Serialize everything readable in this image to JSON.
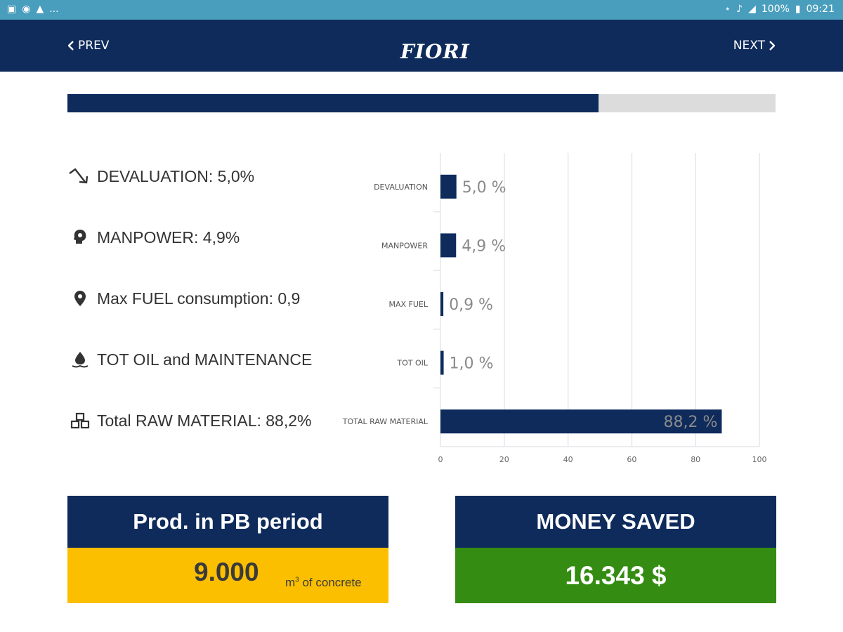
{
  "status_bar": {
    "left_icons": [
      "image-icon",
      "at-icon",
      "warning-icon",
      "more-notifications-icon"
    ],
    "more_text": "...",
    "right_icons": [
      "bluetooth-icon",
      "mute-icon",
      "signal-icon"
    ],
    "battery": "100%",
    "time": "09:21"
  },
  "nav": {
    "prev_label": "PREV",
    "next_label": "NEXT",
    "logo_text": "FIORI"
  },
  "progress": {
    "value": 0.75
  },
  "costs": [
    {
      "icon": "trending-down-icon",
      "text": "DEVALUATION: 5,0%"
    },
    {
      "icon": "head-gear-icon",
      "text": "MANPOWER: 4,9%"
    },
    {
      "icon": "location-pin-icon",
      "text": "Max FUEL consumption: 0,9"
    },
    {
      "icon": "oil-drop-icon",
      "text": "TOT OIL and MAINTENANCE"
    },
    {
      "icon": "stacked-boxes-icon",
      "text": "Total RAW MATERIAL: 88,2%"
    }
  ],
  "chart_data": {
    "type": "bar",
    "orientation": "horizontal",
    "categories": [
      "DEVALUATION",
      "MANPOWER",
      "MAX FUEL",
      "TOT OIL",
      "TOTAL RAW MATERIAL"
    ],
    "values": [
      5.0,
      4.9,
      0.9,
      1.0,
      88.2
    ],
    "value_labels": [
      "5,0 %",
      "4,9 %",
      "0,9 %",
      "1,0 %",
      "88,2 %"
    ],
    "xlim": [
      0,
      100
    ],
    "xticks": [
      "0",
      "20",
      "40",
      "60",
      "80",
      "100"
    ],
    "grid": true,
    "bar_color": "#0e2b5c"
  },
  "cards": {
    "prod": {
      "title": "Prod. in PB period",
      "value": "9.000",
      "unit_prefix": "m",
      "unit_sup": "3",
      "unit_suffix": " of concrete"
    },
    "money": {
      "title": "MONEY SAVED",
      "value": "16.343 $"
    }
  },
  "colors": {
    "navy": "#0e2b5c",
    "status_bar": "#4a9ebd",
    "yellow": "#fbbf00",
    "green": "#358c12",
    "progress_track": "#dcdcdc"
  }
}
